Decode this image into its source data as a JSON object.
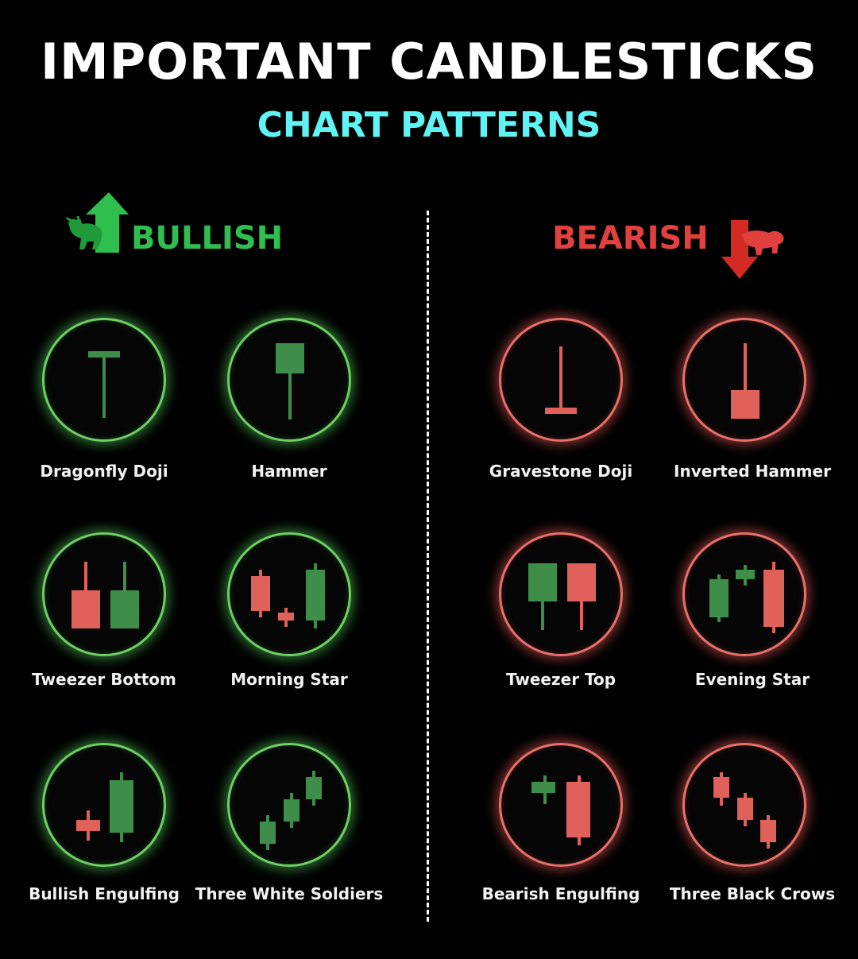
{
  "title": "IMPORTANT CANDLESTICKS",
  "subtitle": "CHART PATTERNS",
  "bullish": {
    "heading": "BULLISH",
    "icon": "bull-up-arrow-icon",
    "color": "#2fbf4f",
    "patterns": [
      "Dragonfly Doji",
      "Hammer",
      "Tweezer Bottom",
      "Morning Star",
      "Bullish Engulfing",
      "Three White Soldiers"
    ]
  },
  "bearish": {
    "heading": "BEARISH",
    "icon": "bear-down-arrow-icon",
    "color": "#e0413f",
    "patterns": [
      "Gravestone Doji",
      "Inverted Hammer",
      "Tweezer Top",
      "Evening Star",
      "Bearish Engulfing",
      "Three Black Crows"
    ]
  },
  "colors": {
    "candle_green": "#3e8e49",
    "candle_red": "#e0615a",
    "title": "#ffffff",
    "subtitle": "#5ff3f3"
  }
}
